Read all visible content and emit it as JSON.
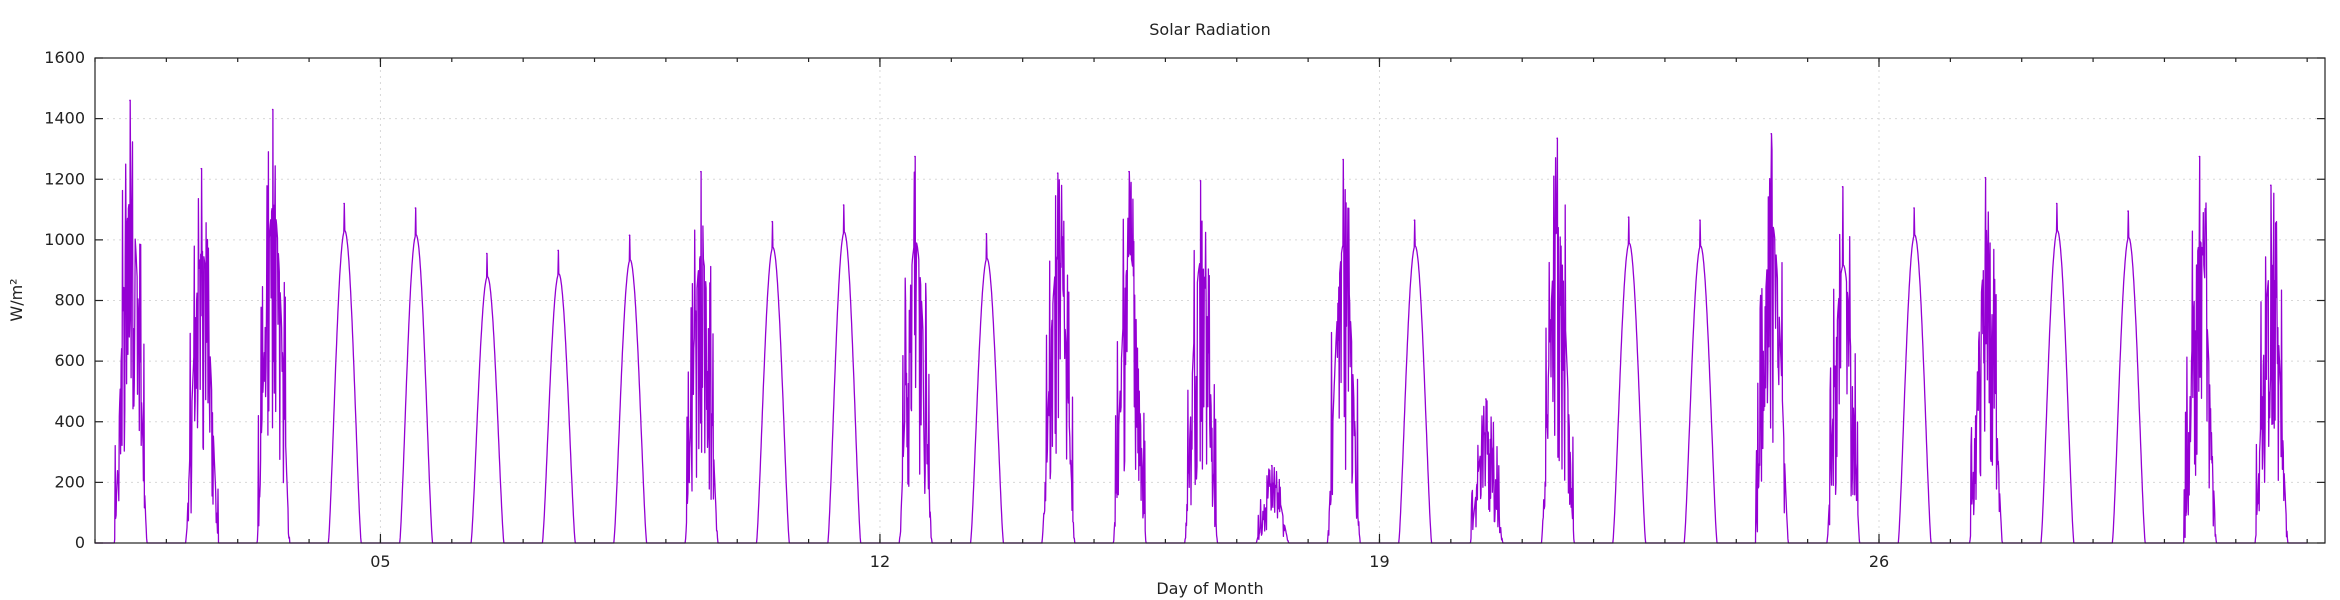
{
  "chart_data": {
    "type": "line",
    "title": "Solar Radiation",
    "xlabel": "Day of Month",
    "ylabel": "W/m²",
    "xlim": [
      1,
      32.25
    ],
    "ylim": [
      0,
      1600
    ],
    "y_ticks": [
      0,
      200,
      400,
      600,
      800,
      1000,
      1200,
      1400,
      1600
    ],
    "x_ticks": [
      {
        "value": 5,
        "label": "05"
      },
      {
        "value": 12,
        "label": "12"
      },
      {
        "value": 19,
        "label": "19"
      },
      {
        "value": 26,
        "label": "26"
      }
    ],
    "grid": true,
    "color": "#9400D3",
    "series": [
      {
        "daily_peaks_w_m2": [
          1460,
          1235,
          1430,
          1120,
          1105,
          955,
          965,
          1015,
          1225,
          1060,
          1115,
          1275,
          1020,
          1220,
          1225,
          1195,
          255,
          1265,
          1065,
          475,
          1335,
          1075,
          1065,
          1350,
          1175,
          1105,
          1205,
          1120,
          1095,
          1275,
          1180
        ]
      }
    ]
  }
}
